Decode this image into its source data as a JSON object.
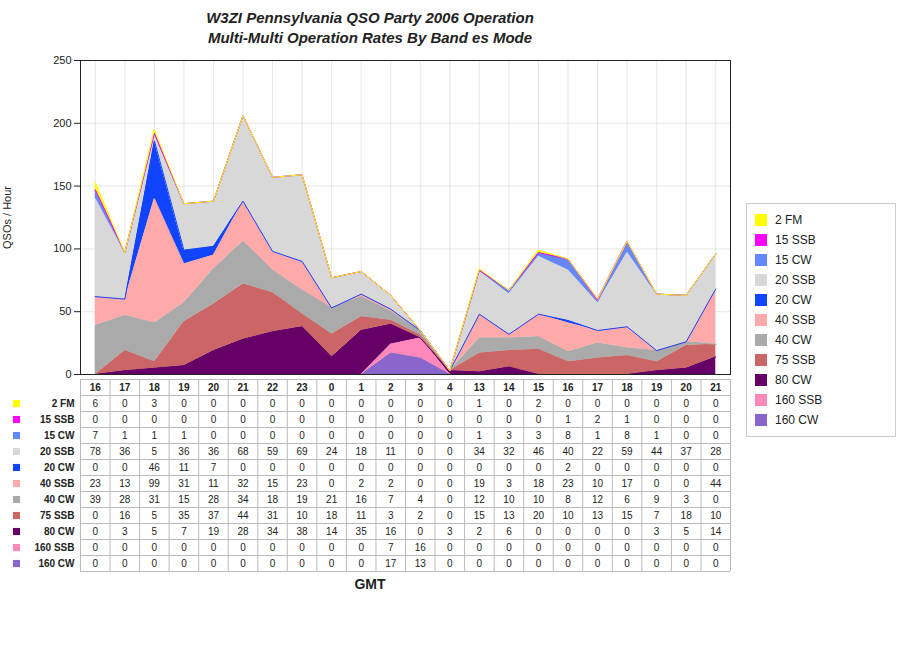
{
  "chart_data": {
    "type": "area",
    "title": "W3ZI Pennsylvania QSO Party 2006 Operation",
    "subtitle": "Multi-Multi Operation Rates By Band es Mode",
    "xlabel": "GMT",
    "ylabel": "QSOs / Hour",
    "categories": [
      "16",
      "17",
      "18",
      "19",
      "20",
      "21",
      "22",
      "23",
      "0",
      "1",
      "2",
      "3",
      "4",
      "13",
      "14",
      "15",
      "16",
      "17",
      "18",
      "19",
      "20",
      "21"
    ],
    "series": [
      {
        "name": "160 CW",
        "color": "#8866cc",
        "values": [
          0,
          0,
          0,
          0,
          0,
          0,
          0,
          0,
          0,
          0,
          17,
          13,
          0,
          0,
          0,
          0,
          0,
          0,
          0,
          0,
          0,
          0
        ]
      },
      {
        "name": "160 SSB",
        "color": "#ff88bb",
        "values": [
          0,
          0,
          0,
          0,
          0,
          0,
          0,
          0,
          0,
          0,
          7,
          16,
          0,
          0,
          0,
          0,
          0,
          0,
          0,
          0,
          0,
          0
        ]
      },
      {
        "name": "80 CW",
        "color": "#660066",
        "values": [
          0,
          3,
          5,
          7,
          19,
          28,
          34,
          38,
          14,
          35,
          16,
          0,
          3,
          2,
          6,
          0,
          0,
          0,
          0,
          3,
          5,
          14
        ]
      },
      {
        "name": "75 SSB",
        "color": "#cc6666",
        "values": [
          0,
          16,
          5,
          35,
          37,
          44,
          31,
          10,
          18,
          11,
          3,
          2,
          0,
          15,
          13,
          20,
          10,
          13,
          15,
          7,
          18,
          10
        ]
      },
      {
        "name": "40 CW",
        "color": "#aaaaaa",
        "values": [
          39,
          28,
          31,
          15,
          28,
          34,
          18,
          19,
          21,
          16,
          7,
          4,
          0,
          12,
          10,
          10,
          8,
          12,
          6,
          9,
          3,
          0
        ]
      },
      {
        "name": "40 SSB",
        "color": "#ffaaaa",
        "values": [
          23,
          13,
          99,
          31,
          11,
          32,
          15,
          23,
          0,
          2,
          2,
          0,
          0,
          19,
          3,
          18,
          23,
          10,
          17,
          0,
          0,
          44
        ]
      },
      {
        "name": "20 CW",
        "color": "#1144ff",
        "values": [
          0,
          0,
          46,
          11,
          7,
          0,
          0,
          0,
          0,
          0,
          0,
          0,
          0,
          0,
          0,
          0,
          2,
          0,
          0,
          0,
          0,
          0
        ]
      },
      {
        "name": "20 SSB",
        "color": "#d8d8d8",
        "values": [
          78,
          36,
          5,
          36,
          36,
          68,
          59,
          69,
          24,
          18,
          11,
          0,
          0,
          34,
          32,
          46,
          40,
          22,
          59,
          44,
          37,
          28
        ]
      },
      {
        "name": "15 CW",
        "color": "#6688ff",
        "values": [
          7,
          1,
          1,
          1,
          0,
          0,
          0,
          0,
          0,
          0,
          0,
          0,
          0,
          1,
          3,
          3,
          8,
          1,
          8,
          1,
          0,
          0
        ]
      },
      {
        "name": "15 SSB",
        "color": "#ff00ff",
        "values": [
          0,
          0,
          0,
          0,
          0,
          0,
          0,
          0,
          0,
          0,
          0,
          0,
          0,
          0,
          0,
          0,
          1,
          2,
          1,
          0,
          0,
          0
        ]
      },
      {
        "name": "2 FM",
        "color": "#ffff00",
        "values": [
          6,
          0,
          3,
          0,
          0,
          0,
          0,
          0,
          0,
          0,
          0,
          0,
          0,
          1,
          0,
          2,
          0,
          0,
          0,
          0,
          0,
          0
        ]
      }
    ],
    "stacked": true,
    "ylim": [
      0,
      250
    ],
    "yticks": [
      0,
      50,
      100,
      150,
      200,
      250
    ],
    "grid": true,
    "legend": "right",
    "data_labels": true
  }
}
